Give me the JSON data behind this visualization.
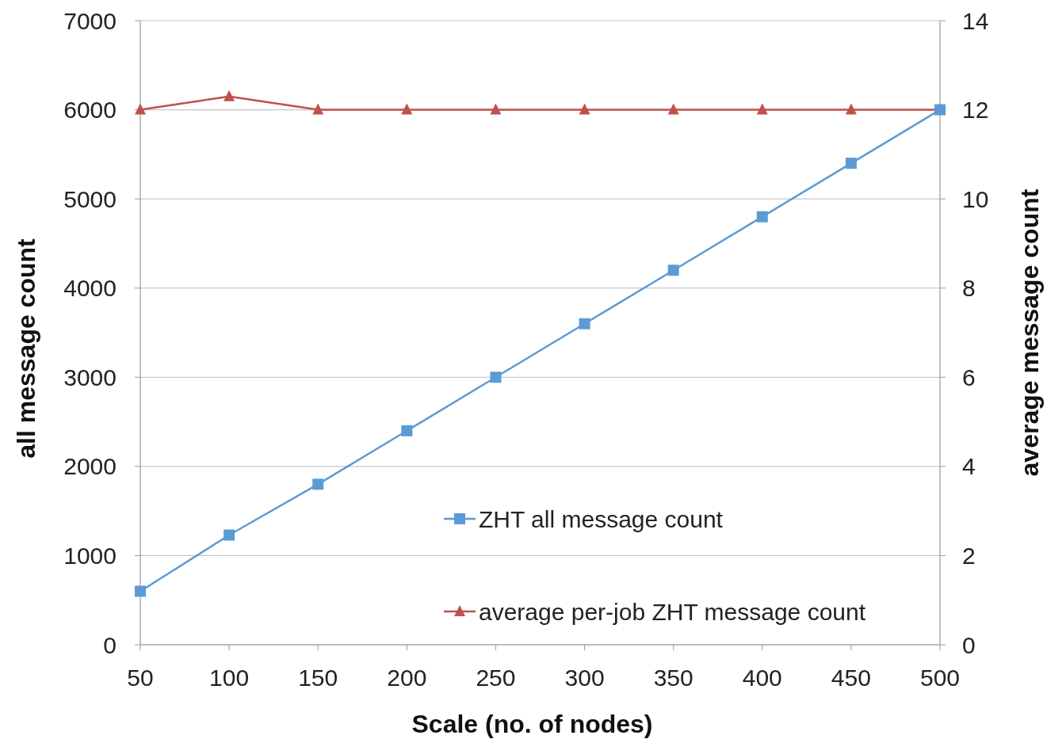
{
  "chart_data": {
    "type": "line",
    "xlabel": "Scale (no. of nodes)",
    "ylabel": "all message count",
    "y2label": "average message count",
    "x": [
      50,
      100,
      150,
      200,
      250,
      300,
      350,
      400,
      450,
      500
    ],
    "xlim": [
      50,
      500
    ],
    "xticks": [
      50,
      100,
      150,
      200,
      250,
      300,
      350,
      400,
      450,
      500
    ],
    "ylim": [
      0,
      7000
    ],
    "yticks": [
      0,
      1000,
      2000,
      3000,
      4000,
      5000,
      6000,
      7000
    ],
    "y2lim": [
      0,
      14
    ],
    "y2ticks": [
      0,
      2,
      4,
      6,
      8,
      10,
      12,
      14
    ],
    "grid": "y",
    "legend": "bottom right",
    "series": [
      {
        "name": "ZHT all message count",
        "color": "#5b9bd5",
        "marker": "square",
        "values": [
          600,
          1230,
          1800,
          2400,
          3000,
          3600,
          4200,
          4800,
          5400,
          6000
        ]
      },
      {
        "name": "average per-job ZHT message count",
        "color": "#c0504d",
        "marker": "triangle",
        "axis": "y2",
        "values": [
          12,
          12.3,
          12,
          12,
          12,
          12,
          12,
          12,
          12,
          12
        ]
      }
    ]
  }
}
